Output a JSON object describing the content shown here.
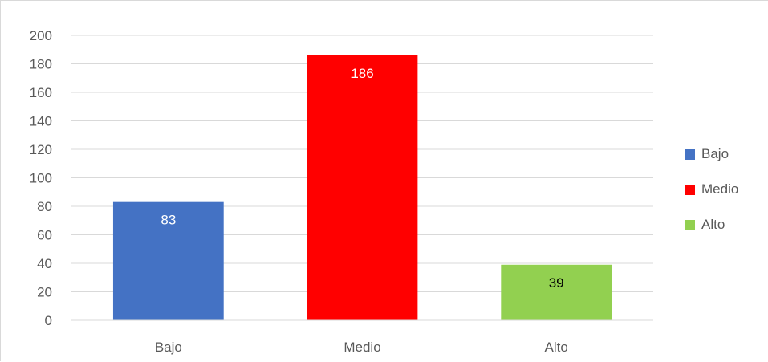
{
  "chart_data": {
    "type": "bar",
    "title": "",
    "xlabel": "",
    "ylabel": "",
    "categories": [
      "Bajo",
      "Medio",
      "Alto"
    ],
    "values": [
      83,
      186,
      39
    ],
    "data_labels": [
      "83",
      "186",
      "39"
    ],
    "bar_colors": [
      "#4472C4",
      "#FF0000",
      "#92D050"
    ],
    "label_colors": [
      "#FFFFFF",
      "#FFFFFF",
      "#000000"
    ],
    "ylim": [
      0,
      200
    ],
    "y_ticks": [
      "0",
      "20",
      "40",
      "60",
      "80",
      "100",
      "120",
      "140",
      "160",
      "180",
      "200"
    ],
    "grid": true,
    "legend_position": "right",
    "legend": [
      {
        "label": "Bajo",
        "color": "#4472C4"
      },
      {
        "label": "Medio",
        "color": "#FF0000"
      },
      {
        "label": "Alto",
        "color": "#92D050"
      }
    ]
  }
}
